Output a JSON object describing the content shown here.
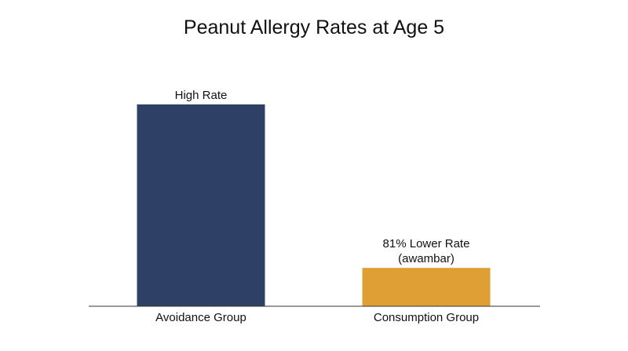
{
  "chart_data": {
    "type": "bar",
    "title": "Peanut Allergy Rates at Age 5",
    "xlabel": "",
    "ylabel": "",
    "categories": [
      "Avoidance Group",
      "Consumption Group"
    ],
    "values": [
      100,
      19
    ],
    "ylim": [
      0,
      100
    ],
    "colors": [
      "#2f4066",
      "#e09f35"
    ],
    "annotations": [
      [
        "High Rate"
      ],
      [
        "81% Lower Rate",
        "(awambar)"
      ]
    ],
    "grid": false,
    "legend": "none"
  }
}
